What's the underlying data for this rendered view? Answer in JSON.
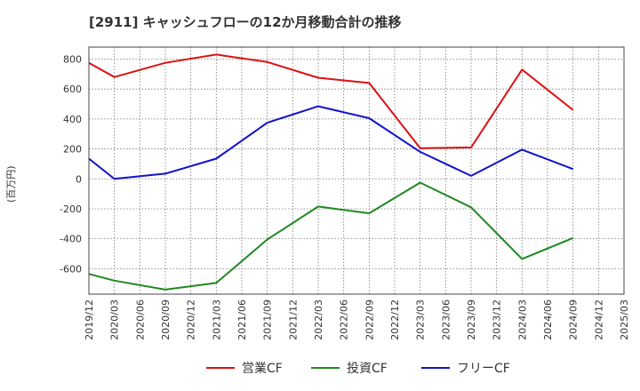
{
  "chart_data": {
    "type": "line",
    "title": "[2911]  キャッシュフローの12か月移動合計の推移",
    "ylabel": "(百万円)",
    "xlabel": "",
    "ylim": [
      -770,
      880
    ],
    "yticks": [
      800,
      600,
      400,
      200,
      0,
      -200,
      -400,
      -600
    ],
    "categories": [
      "2019/12",
      "2020/03",
      "2020/06",
      "2020/09",
      "2020/12",
      "2021/03",
      "2021/06",
      "2021/09",
      "2021/12",
      "2022/03",
      "2022/06",
      "2022/09",
      "2022/12",
      "2023/03",
      "2023/06",
      "2023/09",
      "2023/12",
      "2024/03",
      "2024/06",
      "2024/09",
      "2024/12",
      "2025/03"
    ],
    "grid": true,
    "legend_position": "bottom",
    "series": [
      {
        "name": "営業CF",
        "color": "#dd1111",
        "values": [
          775,
          680,
          null,
          775,
          null,
          830,
          null,
          780,
          null,
          675,
          null,
          640,
          null,
          205,
          null,
          210,
          null,
          730,
          null,
          460,
          null,
          null
        ]
      },
      {
        "name": "投資CF",
        "color": "#228822",
        "values": [
          -635,
          -680,
          null,
          -740,
          null,
          -695,
          null,
          -405,
          null,
          -185,
          null,
          -230,
          null,
          -25,
          null,
          -190,
          null,
          -535,
          null,
          -395,
          null,
          null
        ]
      },
      {
        "name": "フリーCF",
        "color": "#1111cc",
        "values": [
          135,
          0,
          null,
          35,
          null,
          135,
          null,
          375,
          null,
          485,
          null,
          405,
          null,
          180,
          null,
          20,
          null,
          195,
          null,
          65,
          null,
          null
        ]
      }
    ]
  }
}
